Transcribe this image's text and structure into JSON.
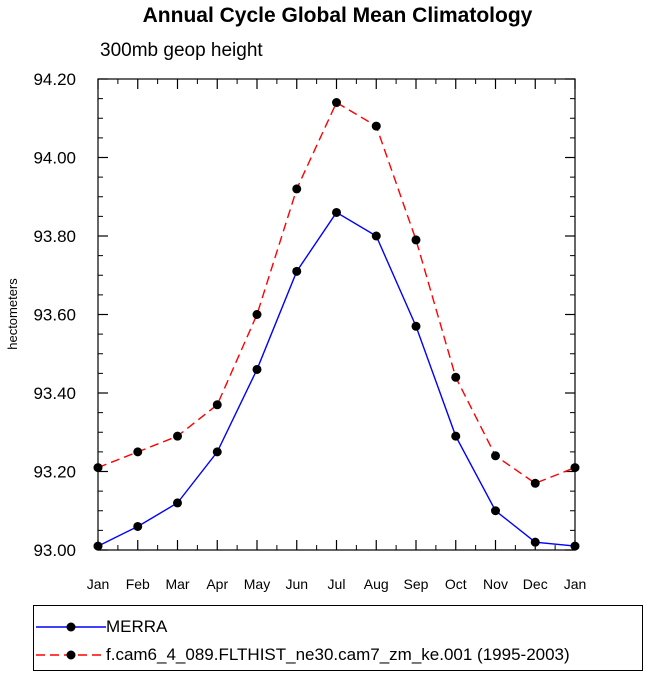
{
  "chart_data": {
    "type": "line",
    "title": "Annual Cycle Global Mean Climatology",
    "subtitle": "300mb geop height",
    "xlabel": "",
    "ylabel": "hectometers",
    "categories": [
      "Jan",
      "Feb",
      "Mar",
      "Apr",
      "May",
      "Jun",
      "Jul",
      "Aug",
      "Sep",
      "Oct",
      "Nov",
      "Dec",
      "Jan"
    ],
    "ylim": [
      93.0,
      94.2
    ],
    "yticks": [
      "93.00",
      "93.20",
      "93.40",
      "93.60",
      "93.80",
      "94.00",
      "94.20"
    ],
    "grid": false,
    "series": [
      {
        "name": "MERRA",
        "color": "#0000ff",
        "dash": "solid",
        "values": [
          93.01,
          93.06,
          93.12,
          93.25,
          93.46,
          93.71,
          93.86,
          93.8,
          93.57,
          93.29,
          93.1,
          93.02,
          93.01
        ]
      },
      {
        "name": "f.cam6_4_089.FLTHIST_ne30.cam7_zm_ke.001 (1995-2003)",
        "color": "#ff0000",
        "dash": "dashed",
        "values": [
          93.21,
          93.25,
          93.29,
          93.37,
          93.6,
          93.92,
          94.14,
          94.08,
          93.79,
          93.44,
          93.24,
          93.17,
          93.21
        ]
      }
    ]
  }
}
